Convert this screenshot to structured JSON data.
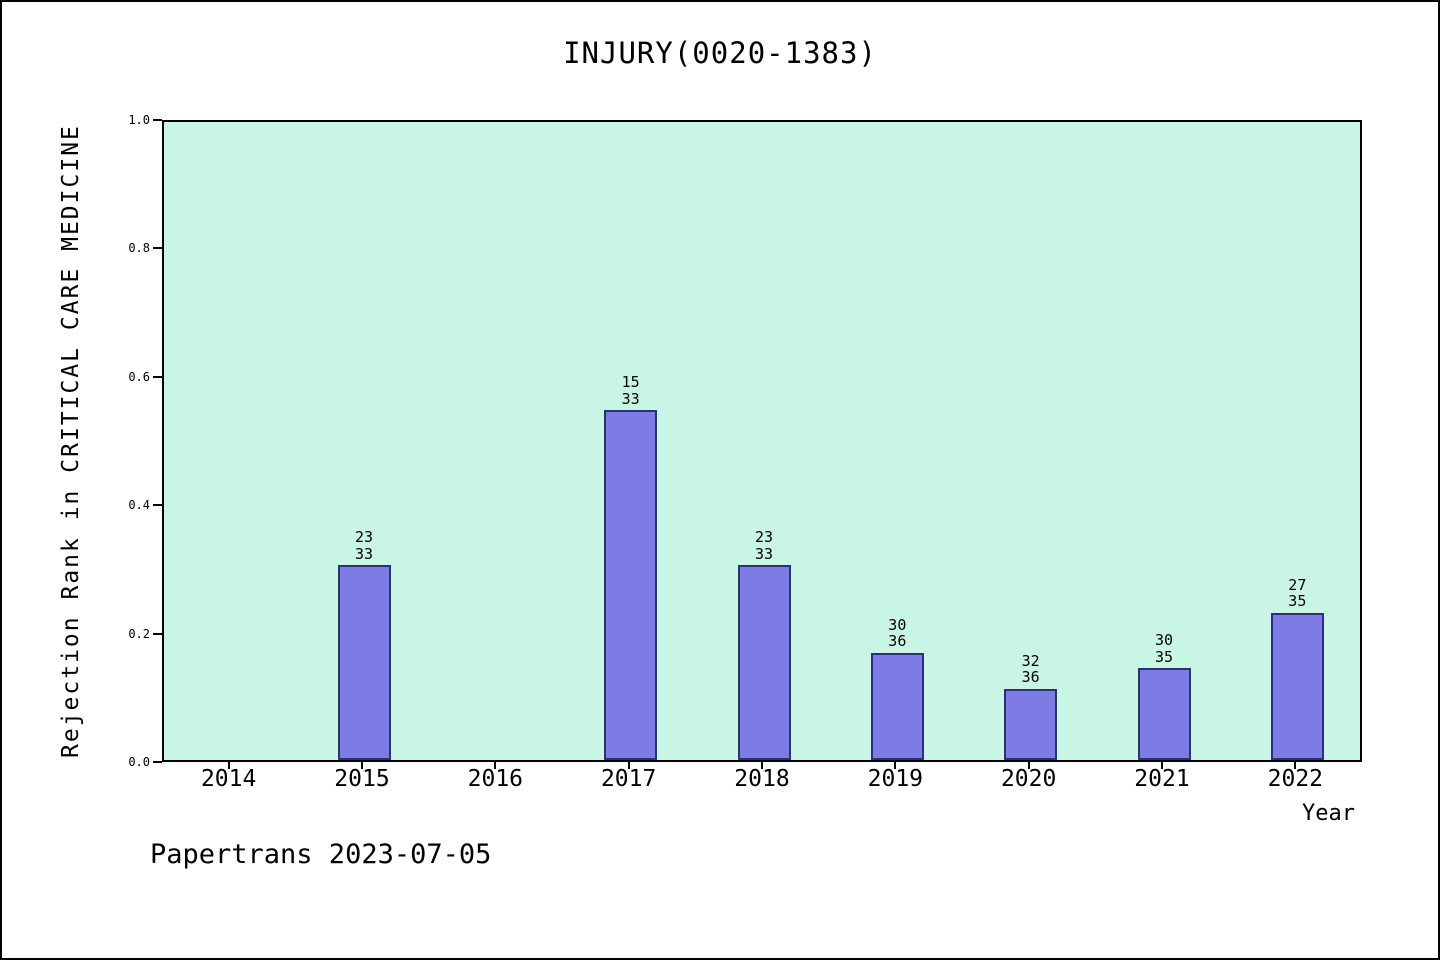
{
  "footer": "Papertrans 2023-07-05",
  "chart_data": {
    "type": "bar",
    "title": "INJURY(0020-1383)",
    "xlabel": "Year",
    "ylabel": "Rejection Rank in CRITICAL CARE MEDICINE",
    "ylim": [
      0.0,
      1.0
    ],
    "yticks": [
      0.0,
      0.2,
      0.4,
      0.6,
      0.8,
      1.0
    ],
    "categories": [
      "2014",
      "2015",
      "2016",
      "2017",
      "2018",
      "2019",
      "2020",
      "2021",
      "2022"
    ],
    "values": [
      null,
      0.303,
      null,
      0.545,
      0.303,
      0.167,
      0.111,
      0.143,
      0.229
    ],
    "bar_labels": [
      null,
      "23/33",
      null,
      "15/33",
      "23/33",
      "30/36",
      "32/36",
      "30/35",
      "27/35"
    ],
    "grid": false,
    "legend": null,
    "colors": {
      "bar_fill": "#7e7ce4",
      "bar_edge": "#2e2e7a",
      "plot_bg": "#c9f5e4",
      "axis": "#000000",
      "page_bg": "#ffffff"
    }
  }
}
